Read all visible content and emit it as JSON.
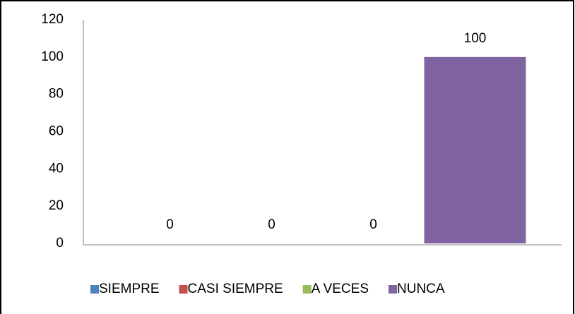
{
  "chart_data": {
    "type": "bar",
    "categories": [
      null
    ],
    "series": [
      {
        "name": "SIEMPRE",
        "color": "#4f81bd",
        "values": [
          0
        ]
      },
      {
        "name": "CASI SIEMPRE",
        "color": "#c0504d",
        "values": [
          0
        ]
      },
      {
        "name": "A VECES",
        "color": "#9bbb59",
        "values": [
          0
        ]
      },
      {
        "name": "NUNCA",
        "color": "#8064a2",
        "values": [
          100
        ]
      }
    ],
    "ylim": [
      0,
      120
    ],
    "yticks": [
      0,
      20,
      40,
      60,
      80,
      100,
      120
    ],
    "legend": "bottom"
  }
}
